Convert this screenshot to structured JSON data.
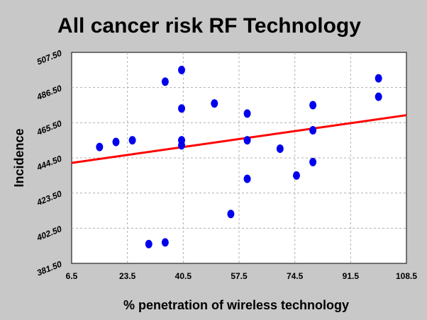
{
  "chart_data": {
    "type": "scatter",
    "title": "All cancer risk RF Technology",
    "xlabel": "% penetration of wireless technology",
    "ylabel": "Incidence",
    "xlim": [
      6.5,
      108.5
    ],
    "ylim": [
      381.5,
      507.5
    ],
    "x_ticks": [
      "6.5",
      "23.5",
      "40.5",
      "57.5",
      "74.5",
      "91.5",
      "108.5"
    ],
    "y_ticks": [
      "381.50",
      "402.50",
      "423.50",
      "444.50",
      "465.50",
      "486.50",
      "507.50"
    ],
    "grid": true,
    "point_color": "#0000ee",
    "trend_color": "#ff0000",
    "points": [
      {
        "x": 15,
        "y": 451
      },
      {
        "x": 20,
        "y": 454
      },
      {
        "x": 25,
        "y": 455
      },
      {
        "x": 30,
        "y": 393
      },
      {
        "x": 35,
        "y": 394
      },
      {
        "x": 35,
        "y": 490
      },
      {
        "x": 40,
        "y": 497
      },
      {
        "x": 40,
        "y": 474
      },
      {
        "x": 40,
        "y": 455
      },
      {
        "x": 40,
        "y": 452
      },
      {
        "x": 50,
        "y": 477
      },
      {
        "x": 55,
        "y": 411
      },
      {
        "x": 60,
        "y": 471
      },
      {
        "x": 60,
        "y": 455
      },
      {
        "x": 60,
        "y": 432
      },
      {
        "x": 70,
        "y": 450
      },
      {
        "x": 75,
        "y": 434
      },
      {
        "x": 80,
        "y": 476
      },
      {
        "x": 80,
        "y": 461
      },
      {
        "x": 80,
        "y": 442
      },
      {
        "x": 100,
        "y": 492
      },
      {
        "x": 100,
        "y": 481
      }
    ],
    "trend_line": {
      "x": [
        6.5,
        108.5
      ],
      "y": [
        441.5,
        470.0
      ]
    }
  }
}
